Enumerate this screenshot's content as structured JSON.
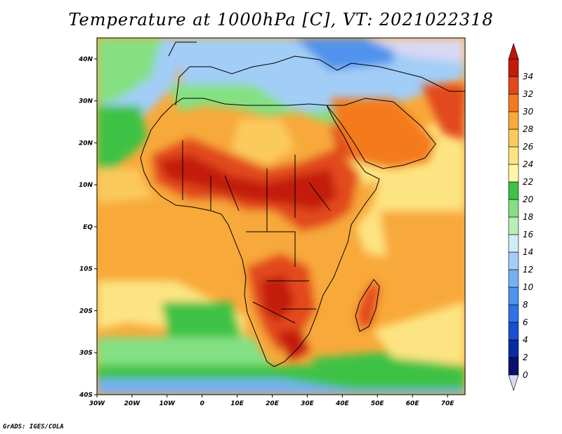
{
  "title": "Temperature at 1000hPa [C], VT: 2021022318",
  "credit": "GrADS: IGES/COLA",
  "map": {
    "projection": "lat-lon",
    "lon_range": [
      -30,
      75
    ],
    "lat_range": [
      -40,
      45
    ],
    "lon_ticks": [
      {
        "value": -30,
        "label": "30W"
      },
      {
        "value": -20,
        "label": "20W"
      },
      {
        "value": -10,
        "label": "10W"
      },
      {
        "value": 0,
        "label": "0"
      },
      {
        "value": 10,
        "label": "10E"
      },
      {
        "value": 20,
        "label": "20E"
      },
      {
        "value": 30,
        "label": "30E"
      },
      {
        "value": 40,
        "label": "40E"
      },
      {
        "value": 50,
        "label": "50E"
      },
      {
        "value": 60,
        "label": "60E"
      },
      {
        "value": 70,
        "label": "70E"
      }
    ],
    "lat_ticks": [
      {
        "value": 40,
        "label": "40N"
      },
      {
        "value": 30,
        "label": "30N"
      },
      {
        "value": 20,
        "label": "20N"
      },
      {
        "value": 10,
        "label": "10N"
      },
      {
        "value": 0,
        "label": "EQ"
      },
      {
        "value": -10,
        "label": "10S"
      },
      {
        "value": -20,
        "label": "20S"
      },
      {
        "value": -30,
        "label": "30S"
      },
      {
        "value": -40,
        "label": "40S"
      }
    ]
  },
  "colorbar": {
    "levels": [
      "0",
      "2",
      "4",
      "6",
      "8",
      "10",
      "12",
      "14",
      "16",
      "18",
      "20",
      "22",
      "24",
      "26",
      "28",
      "30",
      "32",
      "34"
    ],
    "colors": [
      "#0b0f6e",
      "#0a2aa0",
      "#1a4fd0",
      "#2f72e6",
      "#4f93ee",
      "#74b0f4",
      "#a2cdf7",
      "#d0ecf7",
      "#b8f0b4",
      "#84e083",
      "#3cc245",
      "#fff7a6",
      "#fde482",
      "#fbca5d",
      "#f8a93a",
      "#f47a1f",
      "#e2481a",
      "#c31a0c"
    ],
    "under_color": "#d9d9f2",
    "over_color": "#c0150c"
  },
  "colors": {
    "ocean_warm": "#f8a93a",
    "ocean_mild": "#fde482",
    "land_hot": "#e2481a",
    "land_very_hot": "#c31a0c",
    "mediterranean": "#a2cdf7",
    "cold_south": "#74b0f4"
  }
}
